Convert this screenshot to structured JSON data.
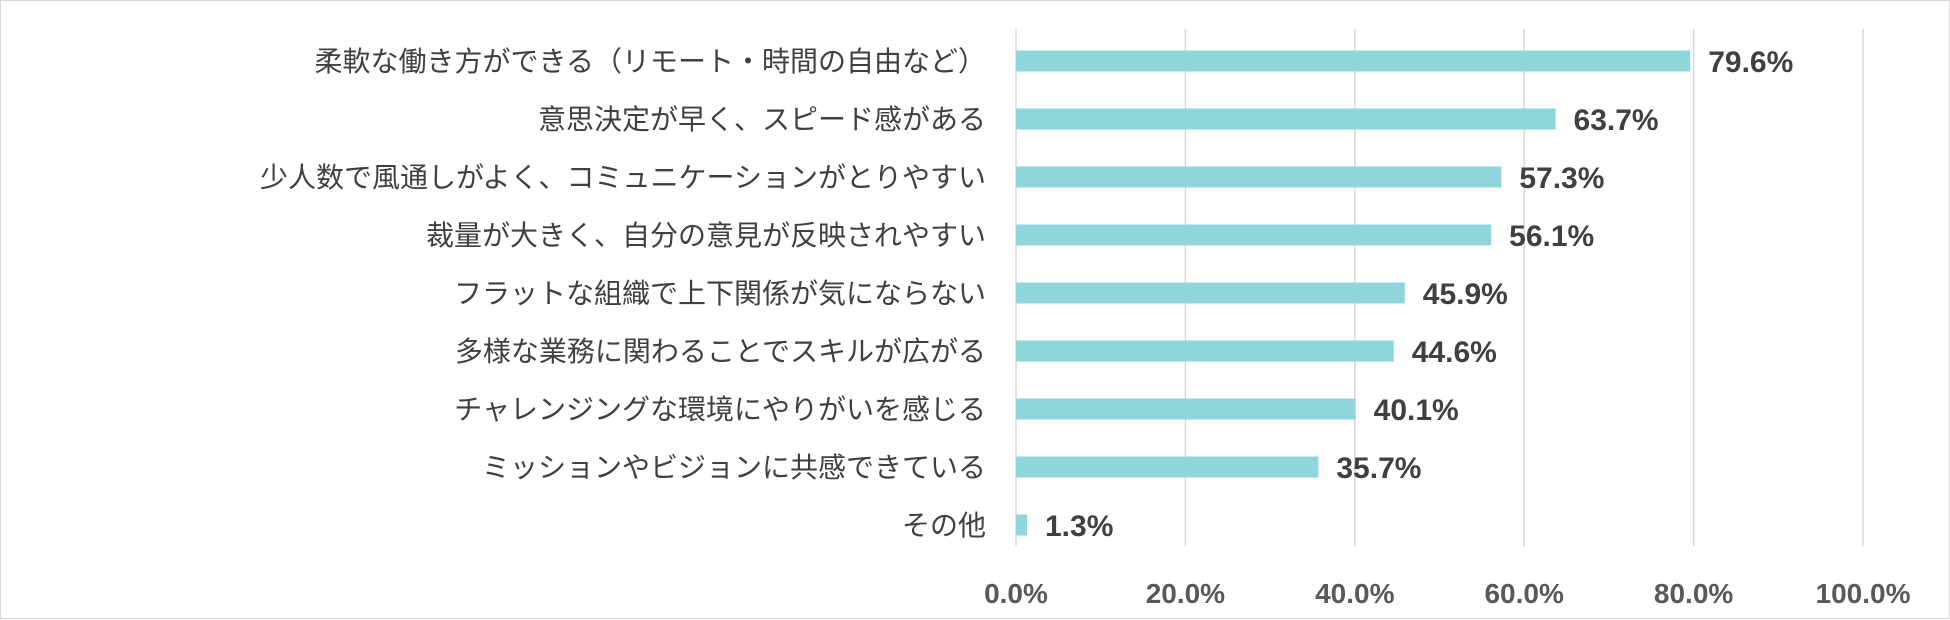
{
  "chart_data": {
    "type": "bar",
    "orientation": "horizontal",
    "title": "",
    "xlabel": "",
    "ylabel": "",
    "categories": [
      "柔軟な働き方ができる（リモート・時間の自由など）",
      "意思決定が早く、スピード感がある",
      "少人数で風通しがよく、コミュニケーションがとりやすい",
      "裁量が大きく、自分の意見が反映されやすい",
      "フラットな組織で上下関係が気にならない",
      "多様な業務に関わることでスキルが広がる",
      "チャレンジングな環境にやりがいを感じる",
      "ミッションやビジョンに共感できている",
      "その他"
    ],
    "values": [
      79.6,
      63.7,
      57.3,
      56.1,
      45.9,
      44.6,
      40.1,
      35.7,
      1.3
    ],
    "value_labels": [
      "79.6%",
      "63.7%",
      "57.3%",
      "56.1%",
      "45.9%",
      "44.6%",
      "40.1%",
      "35.7%",
      "1.3%"
    ],
    "xlim": [
      0,
      100
    ],
    "ticks": [
      0,
      20,
      40,
      60,
      80,
      100
    ],
    "tick_labels": [
      "0.0%",
      "20.0%",
      "40.0%",
      "60.0%",
      "80.0%",
      "100.0%"
    ],
    "grid": true,
    "legend": "none",
    "bar_color": "#8fd6dc"
  }
}
